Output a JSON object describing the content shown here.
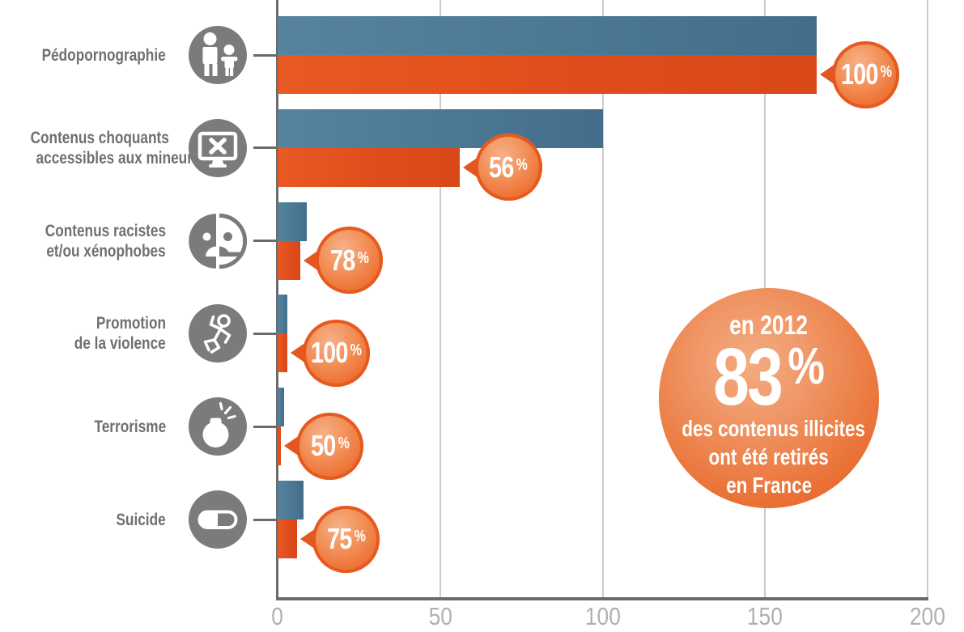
{
  "chart_data": {
    "type": "bar",
    "orientation": "horizontal",
    "title": "",
    "x_axis": {
      "ticks": [
        "0",
        "50",
        "100",
        "150",
        "200"
      ],
      "max": 200,
      "grid": true
    },
    "series_colors": {
      "blue": "#4d7c99",
      "orange": "#e2511f"
    },
    "categories": [
      {
        "label_lines": [
          "Pédopornographie"
        ],
        "icon": "adult-and-child-icon",
        "blue_value": 166,
        "orange_value": 166,
        "percent_label": "100"
      },
      {
        "label_lines": [
          "Contenus choquants",
          "accessibles aux mineurs"
        ],
        "icon": "monitor-x-icon",
        "blue_value": 100,
        "orange_value": 56,
        "percent_label": "56"
      },
      {
        "label_lines": [
          "Contenus racistes",
          "et/ou xénophobes"
        ],
        "icon": "sad-split-face-icon",
        "blue_value": 9,
        "orange_value": 7,
        "percent_label": "78"
      },
      {
        "label_lines": [
          "Promotion",
          "de la violence"
        ],
        "icon": "chalk-outline-icon",
        "blue_value": 3,
        "orange_value": 3,
        "percent_label": "100"
      },
      {
        "label_lines": [
          "Terrorisme"
        ],
        "icon": "bomb-icon",
        "blue_value": 2,
        "orange_value": 1,
        "percent_label": "50"
      },
      {
        "label_lines": [
          "Suicide"
        ],
        "icon": "pill-icon",
        "blue_value": 8,
        "orange_value": 6,
        "percent_label": "75"
      }
    ],
    "percent_suffix": "%"
  },
  "hero_badge": {
    "line_top": "en 2012",
    "value": "83",
    "suffix": "%",
    "line1": "des contenus illicites",
    "line2": "ont été retirés",
    "line3": "en France"
  },
  "colors": {
    "blue_bar": "#4d7c99",
    "orange_bar": "#e2511f",
    "icon_gray": "#7b7b7b",
    "label_gray": "#707070",
    "axis_dark": "#6a6a6a",
    "gridline": "#cbcbcb",
    "axis_tick_text": "#b0b0b0",
    "badge_rim": "#e4571e",
    "text_white": "#ffffff"
  }
}
